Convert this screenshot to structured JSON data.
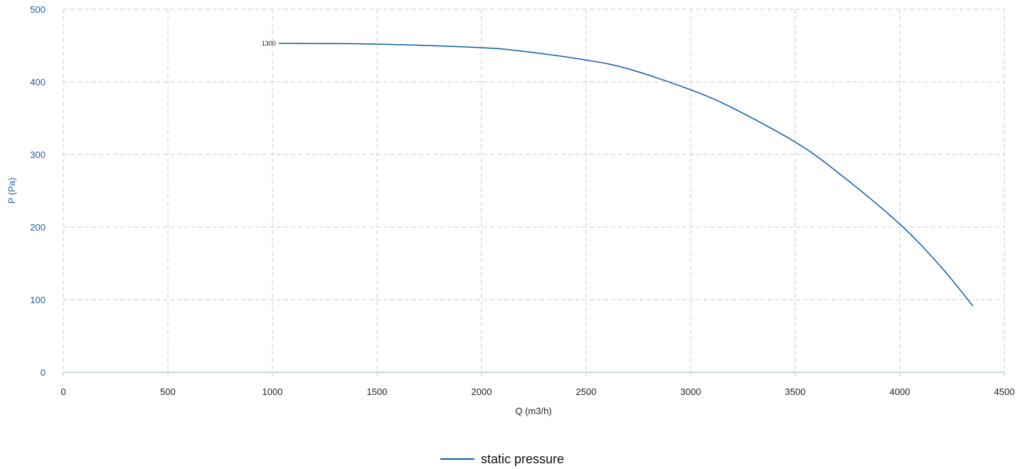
{
  "chart_data": {
    "type": "line",
    "xlabel": "Q (m3/h)",
    "ylabel": "P (Pa)",
    "xlim": [
      0,
      4500
    ],
    "ylim": [
      0,
      500
    ],
    "x_ticks": [
      "0",
      "500",
      "1000",
      "1500",
      "2000",
      "2500",
      "3000",
      "3500",
      "4000",
      "4500"
    ],
    "y_ticks": [
      "0",
      "100",
      "200",
      "300",
      "400",
      "500"
    ],
    "grid": true,
    "legend_position": "bottom-center",
    "curve_label": "1300",
    "series": [
      {
        "name": "static pressure",
        "color": "#0d5ba6",
        "x": [
          1030,
          1500,
          2000,
          2200,
          2500,
          2700,
          3000,
          3200,
          3500,
          3700,
          4000,
          4200,
          4350
        ],
        "y": [
          453,
          452,
          447,
          442,
          430,
          418,
          389,
          364,
          317,
          276,
          204,
          144,
          91
        ]
      }
    ]
  }
}
